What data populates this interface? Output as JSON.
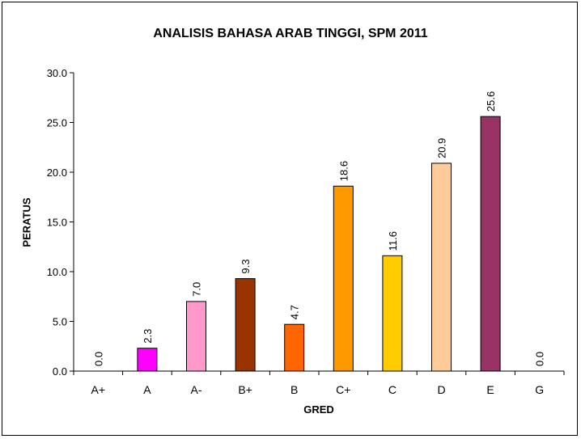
{
  "chart_data": {
    "type": "bar",
    "title": "ANALISIS BAHASA ARAB TINGGI, SPM 2011",
    "xlabel": "GRED",
    "ylabel": "PERATUS",
    "categories": [
      "A+",
      "A",
      "A-",
      "B+",
      "B",
      "C+",
      "C",
      "D",
      "E",
      "G"
    ],
    "values": [
      0.0,
      2.3,
      7.0,
      9.3,
      4.7,
      18.6,
      11.6,
      20.9,
      25.6,
      0.0
    ],
    "value_labels": [
      "0.0",
      "2.3",
      "7.0",
      "9.3",
      "4.7",
      "18.6",
      "11.6",
      "20.9",
      "25.6",
      "0.0"
    ],
    "colors": [
      "#FF00FF",
      "#FF00FF",
      "#FF99CC",
      "#993300",
      "#FF6600",
      "#FF9900",
      "#FFCC00",
      "#FFCC99",
      "#993366",
      "#FF00FF"
    ],
    "ylim": [
      0,
      30
    ],
    "yticks": [
      "0.0",
      "5.0",
      "10.0",
      "15.0",
      "20.0",
      "25.0",
      "30.0"
    ],
    "grid": false,
    "legend": "none"
  }
}
